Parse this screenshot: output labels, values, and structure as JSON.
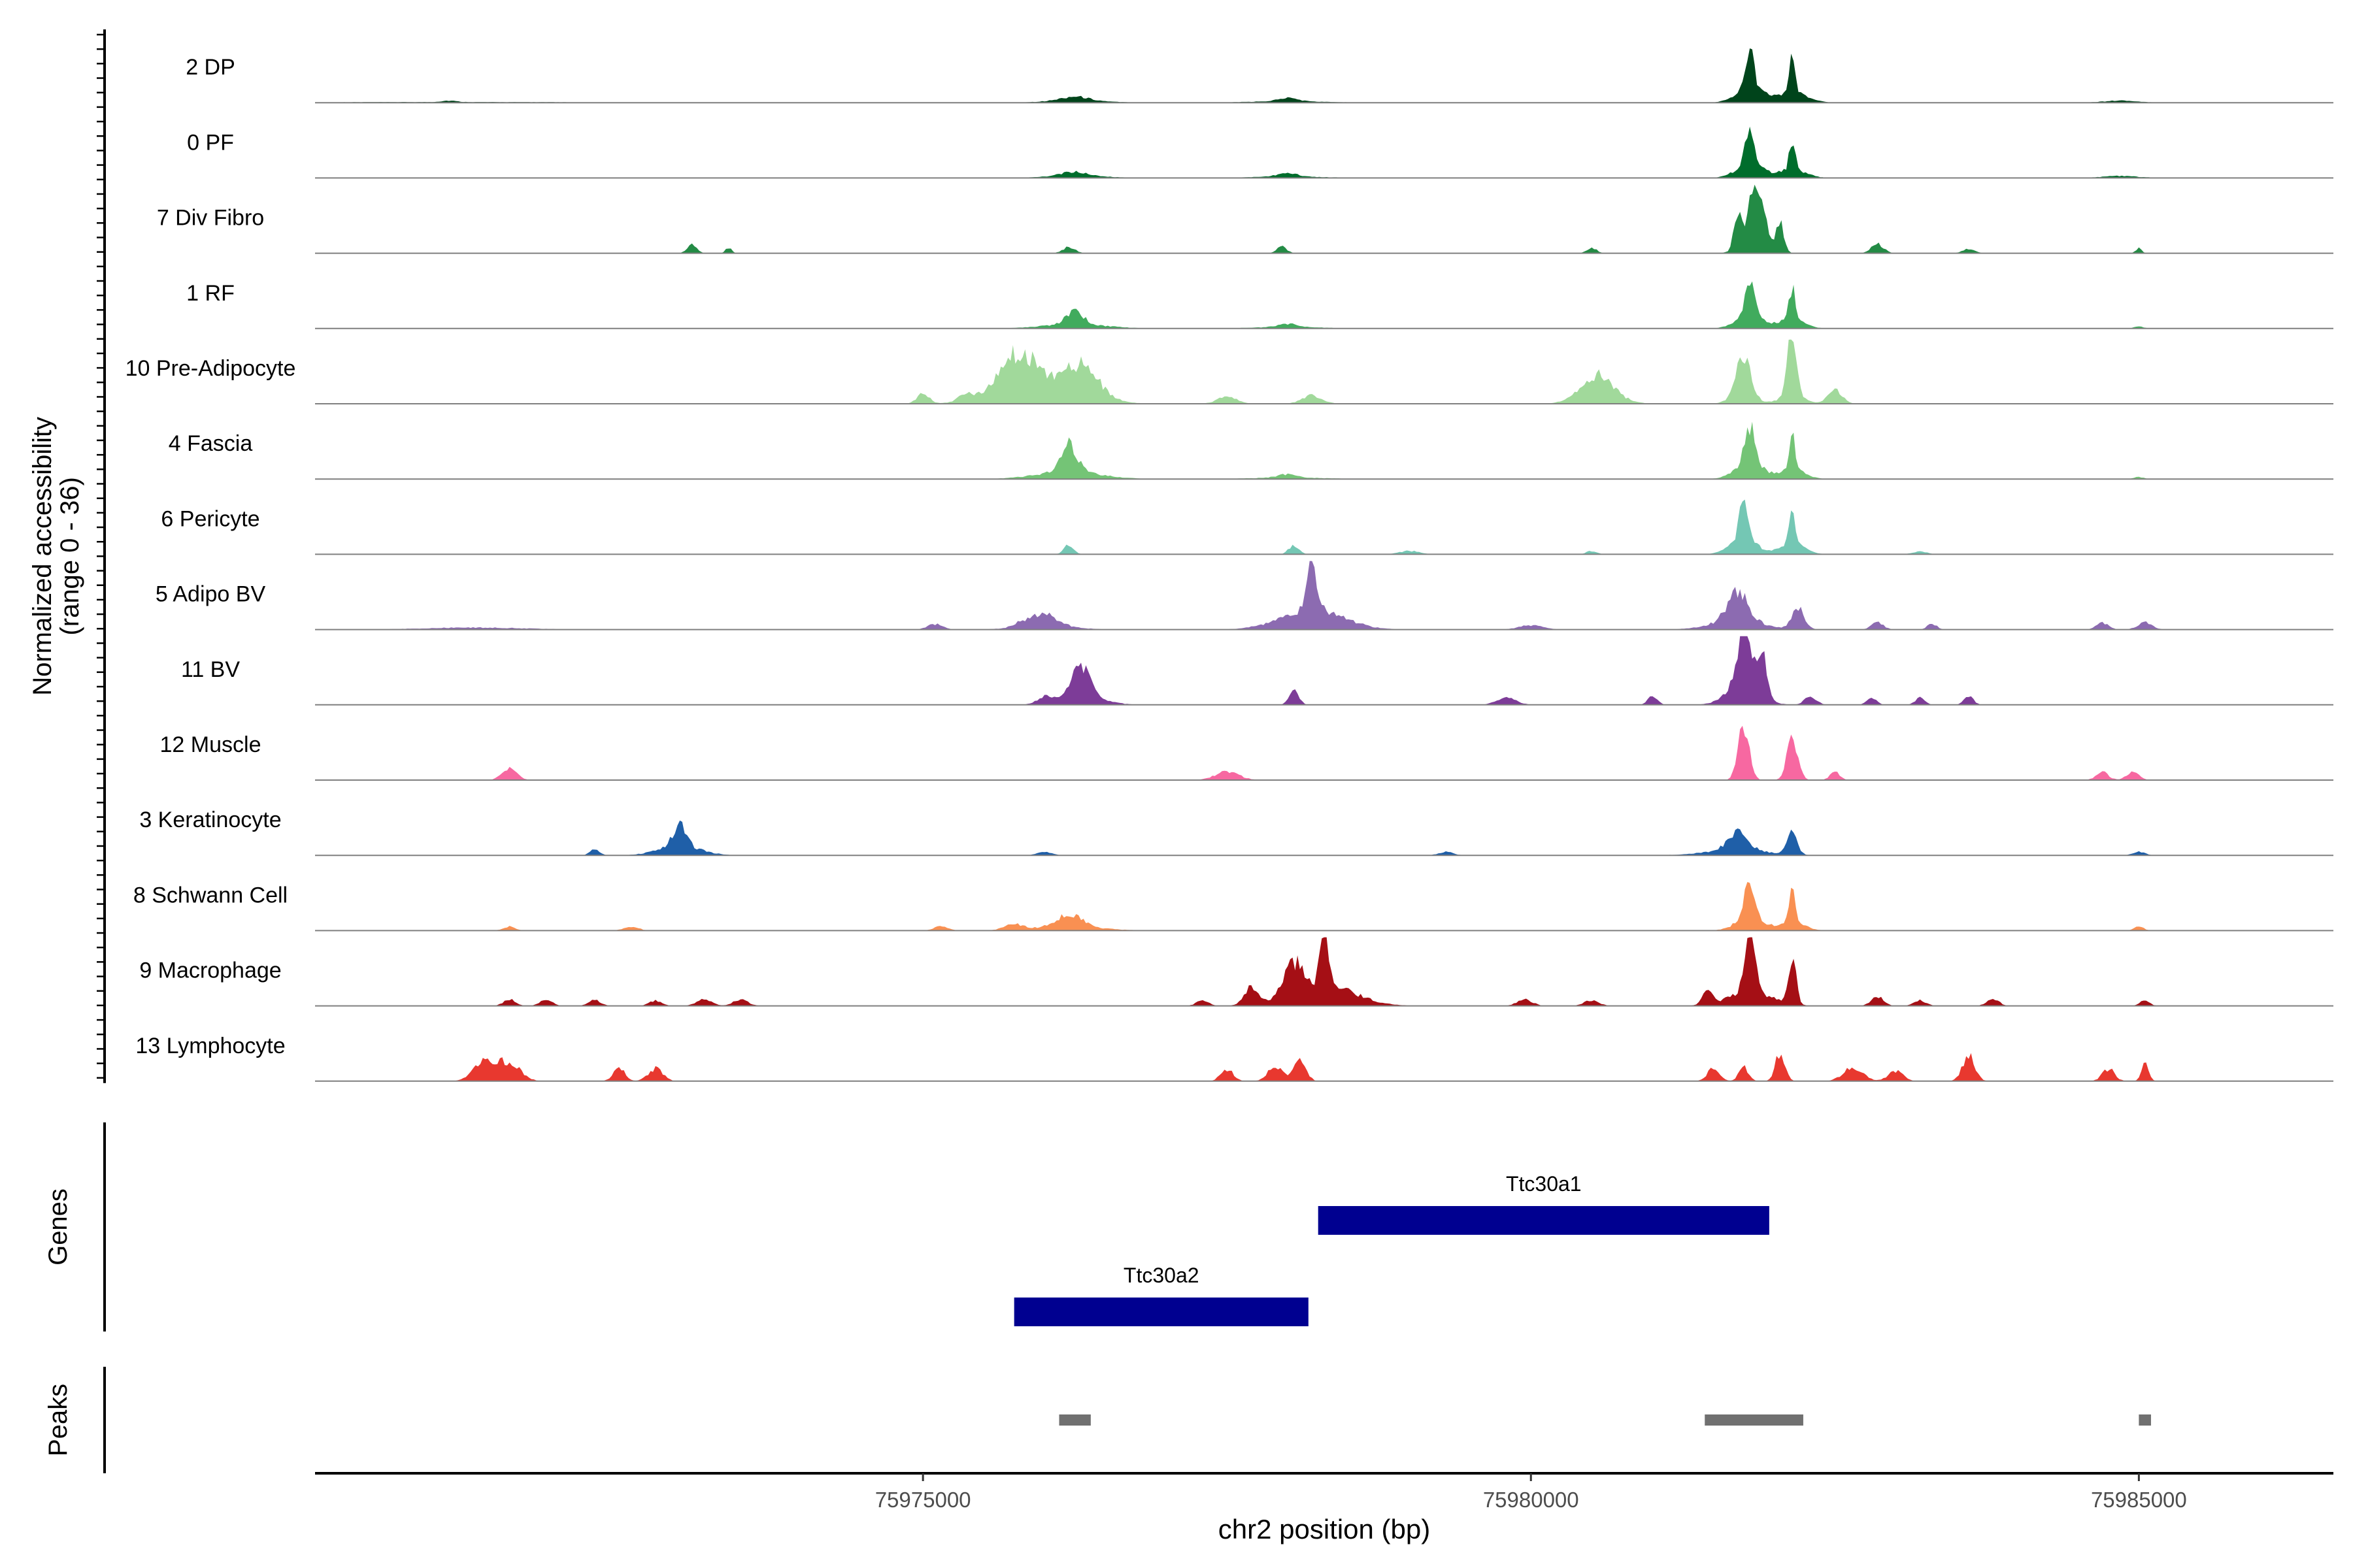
{
  "chart_data": {
    "type": "coverage-track",
    "chromosome": "chr2",
    "xlabel": "chr2 position (bp)",
    "xlim": [
      75970000,
      75986600
    ],
    "xticks": [
      {
        "value": 75975000,
        "label": "75975000"
      },
      {
        "value": 75980000,
        "label": "75980000"
      },
      {
        "value": 75985000,
        "label": "75985000"
      }
    ],
    "ylabel_line1": "Normalized accessibility",
    "ylabel_line2": "(range 0 - 36)",
    "ylim": [
      0,
      36
    ],
    "tracks": [
      {
        "name": "2 DP",
        "color": "#00441b",
        "peaks": [
          [
            75981800,
            70,
            30,
            110,
            22
          ],
          [
            75982150,
            55,
            22,
            120,
            15
          ],
          [
            75976250,
            6,
            110,
            250,
            3
          ],
          [
            75978000,
            5,
            80,
            320,
            2
          ],
          [
            75971100,
            2,
            60,
            1000,
            1
          ],
          [
            75984850,
            2,
            120,
            200,
            1
          ]
        ]
      },
      {
        "name": "0 PF",
        "color": "#006d2c",
        "peaks": [
          [
            75981800,
            60,
            32,
            110,
            20
          ],
          [
            75982150,
            48,
            22,
            110,
            12
          ],
          [
            75976250,
            6,
            110,
            250,
            3
          ],
          [
            75978000,
            5,
            80,
            300,
            2
          ],
          [
            75984850,
            2,
            120,
            200,
            1
          ]
        ]
      },
      {
        "name": "7 Div Fibro",
        "color": "#238b45",
        "peaks": [
          [
            75981850,
            72,
            60,
            100,
            30
          ],
          [
            75981700,
            45,
            30,
            0,
            0
          ],
          [
            75982050,
            40,
            30,
            0,
            0
          ],
          [
            75973100,
            12,
            40,
            80,
            0
          ],
          [
            75973400,
            8,
            25,
            0,
            0
          ],
          [
            75976200,
            9,
            50,
            0,
            0
          ],
          [
            75977950,
            10,
            40,
            0,
            0
          ],
          [
            75980500,
            8,
            40,
            0,
            0
          ],
          [
            75982850,
            14,
            50,
            0,
            0
          ],
          [
            75983600,
            6,
            50,
            0,
            0
          ],
          [
            75985000,
            7,
            25,
            0,
            0
          ]
        ]
      },
      {
        "name": "1 RF",
        "color": "#41ab5d",
        "peaks": [
          [
            75981800,
            55,
            40,
            110,
            18
          ],
          [
            75982150,
            45,
            25,
            100,
            14
          ],
          [
            75976250,
            20,
            70,
            260,
            6
          ],
          [
            75978000,
            5,
            80,
            300,
            2
          ],
          [
            75985000,
            3,
            40,
            0,
            0
          ]
        ]
      },
      {
        "name": "10 Pre-Adipocyte",
        "color": "#a1d99b",
        "peaks": [
          [
            75981750,
            55,
            50,
            90,
            20
          ],
          [
            75982150,
            95,
            35,
            90,
            15
          ],
          [
            75975800,
            50,
            150,
            250,
            25
          ],
          [
            75976300,
            40,
            130,
            200,
            15
          ],
          [
            75975000,
            15,
            50,
            0,
            0
          ],
          [
            75975350,
            10,
            60,
            0,
            0
          ],
          [
            75977500,
            10,
            80,
            0,
            0
          ],
          [
            75978200,
            12,
            80,
            0,
            0
          ],
          [
            75980550,
            30,
            120,
            170,
            12
          ],
          [
            75982500,
            20,
            60,
            0,
            0
          ]
        ]
      },
      {
        "name": "4 Fascia",
        "color": "#74c476",
        "peaks": [
          [
            75981800,
            55,
            45,
            120,
            20
          ],
          [
            75982150,
            45,
            25,
            100,
            14
          ],
          [
            75976200,
            40,
            70,
            260,
            10
          ],
          [
            75978000,
            5,
            80,
            300,
            2
          ],
          [
            75985000,
            3,
            40,
            0,
            0
          ]
        ]
      },
      {
        "name": "6 Pericyte",
        "color": "#74c7b4",
        "peaks": [
          [
            75981750,
            65,
            35,
            110,
            22
          ],
          [
            75982150,
            45,
            25,
            100,
            15
          ],
          [
            75976200,
            14,
            40,
            0,
            0
          ],
          [
            75978050,
            14,
            40,
            0,
            0
          ],
          [
            75979000,
            5,
            80,
            0,
            0
          ],
          [
            75980500,
            5,
            40,
            0,
            0
          ],
          [
            75983200,
            4,
            60,
            0,
            0
          ]
        ]
      },
      {
        "name": "5 Adipo BV",
        "color": "#8c6bb1",
        "peaks": [
          [
            75978200,
            78,
            40,
            250,
            30
          ],
          [
            75976000,
            18,
            100,
            220,
            6
          ],
          [
            75975100,
            8,
            60,
            0,
            0
          ],
          [
            75975800,
            6,
            60,
            0,
            0
          ],
          [
            75981700,
            45,
            80,
            200,
            14
          ],
          [
            75982200,
            30,
            50,
            0,
            0
          ],
          [
            75980000,
            6,
            100,
            0,
            0
          ],
          [
            75982850,
            10,
            50,
            0,
            0
          ],
          [
            75983300,
            8,
            40,
            0,
            0
          ],
          [
            75984700,
            10,
            50,
            0,
            0
          ],
          [
            75985050,
            10,
            60,
            0,
            0
          ],
          [
            75971300,
            3,
            400,
            0,
            0
          ]
        ]
      },
      {
        "name": "11 BV",
        "color": "#7d3c98",
        "peaks": [
          [
            75981750,
            95,
            50,
            130,
            30
          ],
          [
            75981900,
            60,
            40,
            0,
            0
          ],
          [
            75976300,
            45,
            70,
            180,
            12
          ],
          [
            75976000,
            10,
            60,
            0,
            0
          ],
          [
            75978050,
            20,
            40,
            0,
            0
          ],
          [
            75979800,
            10,
            80,
            0,
            0
          ],
          [
            75981000,
            12,
            40,
            0,
            0
          ],
          [
            75982300,
            12,
            50,
            0,
            0
          ],
          [
            75982800,
            10,
            40,
            0,
            0
          ],
          [
            75983200,
            10,
            40,
            0,
            0
          ],
          [
            75983600,
            12,
            40,
            0,
            0
          ]
        ]
      },
      {
        "name": "12 Muscle",
        "color": "#f768a1",
        "peaks": [
          [
            75981750,
            78,
            45,
            100,
            0
          ],
          [
            75982150,
            58,
            45,
            100,
            0
          ],
          [
            75971600,
            18,
            60,
            0,
            0
          ],
          [
            75977500,
            12,
            100,
            0,
            0
          ],
          [
            75982500,
            12,
            40,
            0,
            0
          ],
          [
            75984700,
            12,
            50,
            0,
            0
          ],
          [
            75984950,
            12,
            50,
            0,
            0
          ]
        ]
      },
      {
        "name": "3 Keratinocyte",
        "color": "#1f5fa8",
        "peaks": [
          [
            75973000,
            35,
            50,
            170,
            14
          ],
          [
            75972300,
            8,
            40,
            0,
            0
          ],
          [
            75981700,
            25,
            80,
            250,
            8
          ],
          [
            75982150,
            32,
            40,
            0,
            0
          ],
          [
            75976000,
            5,
            60,
            0,
            0
          ],
          [
            75979300,
            5,
            60,
            0,
            0
          ],
          [
            75985000,
            5,
            50,
            0,
            0
          ]
        ]
      },
      {
        "name": "8 Schwann Cell",
        "color": "#f99052",
        "peaks": [
          [
            75981800,
            60,
            40,
            110,
            20
          ],
          [
            75982150,
            45,
            25,
            100,
            12
          ],
          [
            75976200,
            18,
            100,
            260,
            6
          ],
          [
            75971600,
            6,
            50,
            0,
            0
          ],
          [
            75972600,
            6,
            60,
            0,
            0
          ],
          [
            75975150,
            6,
            60,
            0,
            0
          ],
          [
            75975750,
            8,
            80,
            0,
            0
          ],
          [
            75985000,
            6,
            40,
            0,
            0
          ]
        ]
      },
      {
        "name": "9 Macrophage",
        "color": "#a50f15",
        "peaks": [
          [
            75978300,
            95,
            30,
            250,
            30
          ],
          [
            75978050,
            45,
            80,
            0,
            0
          ],
          [
            75977700,
            25,
            60,
            0,
            0
          ],
          [
            75977300,
            8,
            50,
            0,
            0
          ],
          [
            75981800,
            90,
            40,
            180,
            20
          ],
          [
            75982150,
            70,
            30,
            0,
            0
          ],
          [
            75981450,
            18,
            40,
            0,
            0
          ],
          [
            75971600,
            10,
            50,
            0,
            0
          ],
          [
            75971900,
            10,
            50,
            0,
            0
          ],
          [
            75972300,
            8,
            50,
            0,
            0
          ],
          [
            75972800,
            8,
            50,
            0,
            0
          ],
          [
            75973200,
            10,
            60,
            0,
            0
          ],
          [
            75973500,
            10,
            60,
            0,
            0
          ],
          [
            75979950,
            10,
            60,
            0,
            0
          ],
          [
            75980500,
            8,
            60,
            0,
            0
          ],
          [
            75982850,
            14,
            50,
            0,
            0
          ],
          [
            75983200,
            8,
            50,
            0,
            0
          ],
          [
            75983800,
            10,
            50,
            0,
            0
          ],
          [
            75985050,
            8,
            40,
            0,
            0
          ]
        ]
      },
      {
        "name": "13 Lymphocyte",
        "color": "#e8382f",
        "peaks": [
          [
            75971400,
            30,
            90,
            0,
            0
          ],
          [
            75971600,
            25,
            90,
            0,
            0
          ],
          [
            75972500,
            18,
            50,
            0,
            0
          ],
          [
            75972800,
            18,
            60,
            0,
            0
          ],
          [
            75977500,
            18,
            50,
            0,
            0
          ],
          [
            75977900,
            22,
            60,
            0,
            0
          ],
          [
            75978100,
            30,
            50,
            0,
            0
          ],
          [
            75981500,
            18,
            50,
            0,
            0
          ],
          [
            75981750,
            20,
            40,
            0,
            0
          ],
          [
            75982050,
            40,
            40,
            0,
            0
          ],
          [
            75982650,
            20,
            80,
            0,
            0
          ],
          [
            75983000,
            15,
            60,
            0,
            0
          ],
          [
            75983600,
            38,
            50,
            0,
            0
          ],
          [
            75984750,
            18,
            50,
            0,
            0
          ],
          [
            75985050,
            25,
            30,
            0,
            0
          ]
        ]
      }
    ],
    "genes_label": "Genes",
    "genes": [
      {
        "name": "Ttc30a1",
        "start": 75978250,
        "end": 75981960,
        "row": 0,
        "color": "#000090"
      },
      {
        "name": "Ttc30a2",
        "start": 75975750,
        "end": 75978170,
        "row": 1,
        "color": "#000090"
      }
    ],
    "peaks_label": "Peaks",
    "peak_regions": [
      {
        "start": 75976120,
        "end": 75976380
      },
      {
        "start": 75981430,
        "end": 75982240
      },
      {
        "start": 75985000,
        "end": 75985100
      }
    ],
    "peak_color": "#707070",
    "axis_color": "#000000",
    "baseline_color": "#7f7f7f"
  }
}
